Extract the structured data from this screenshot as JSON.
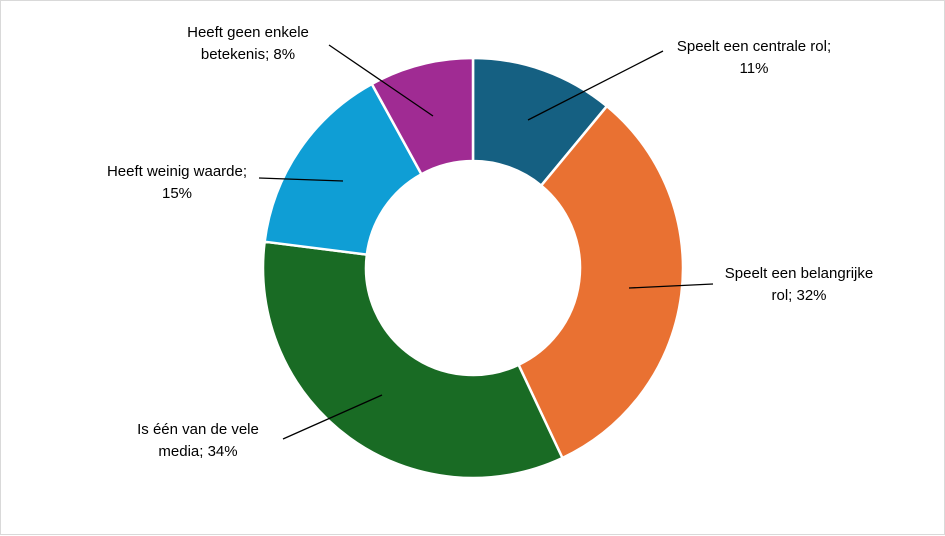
{
  "chart_data": {
    "type": "pie",
    "variant": "donut",
    "title": "",
    "slices": [
      {
        "label_lines": [
          "Speelt een centrale rol;",
          "11%"
        ],
        "value": 11,
        "color": "#156082"
      },
      {
        "label_lines": [
          "Speelt een belangrijke",
          "rol; 32%"
        ],
        "value": 32,
        "color": "#E97132"
      },
      {
        "label_lines": [
          "Is één van de vele",
          "media; 34%"
        ],
        "value": 34,
        "color": "#196B24"
      },
      {
        "label_lines": [
          "Heeft weinig waarde;",
          "15%"
        ],
        "value": 15,
        "color": "#0F9ED5"
      },
      {
        "label_lines": [
          "Heeft geen enkele",
          "betekenis; 8%"
        ],
        "value": 8,
        "color": "#A02B93"
      }
    ]
  }
}
